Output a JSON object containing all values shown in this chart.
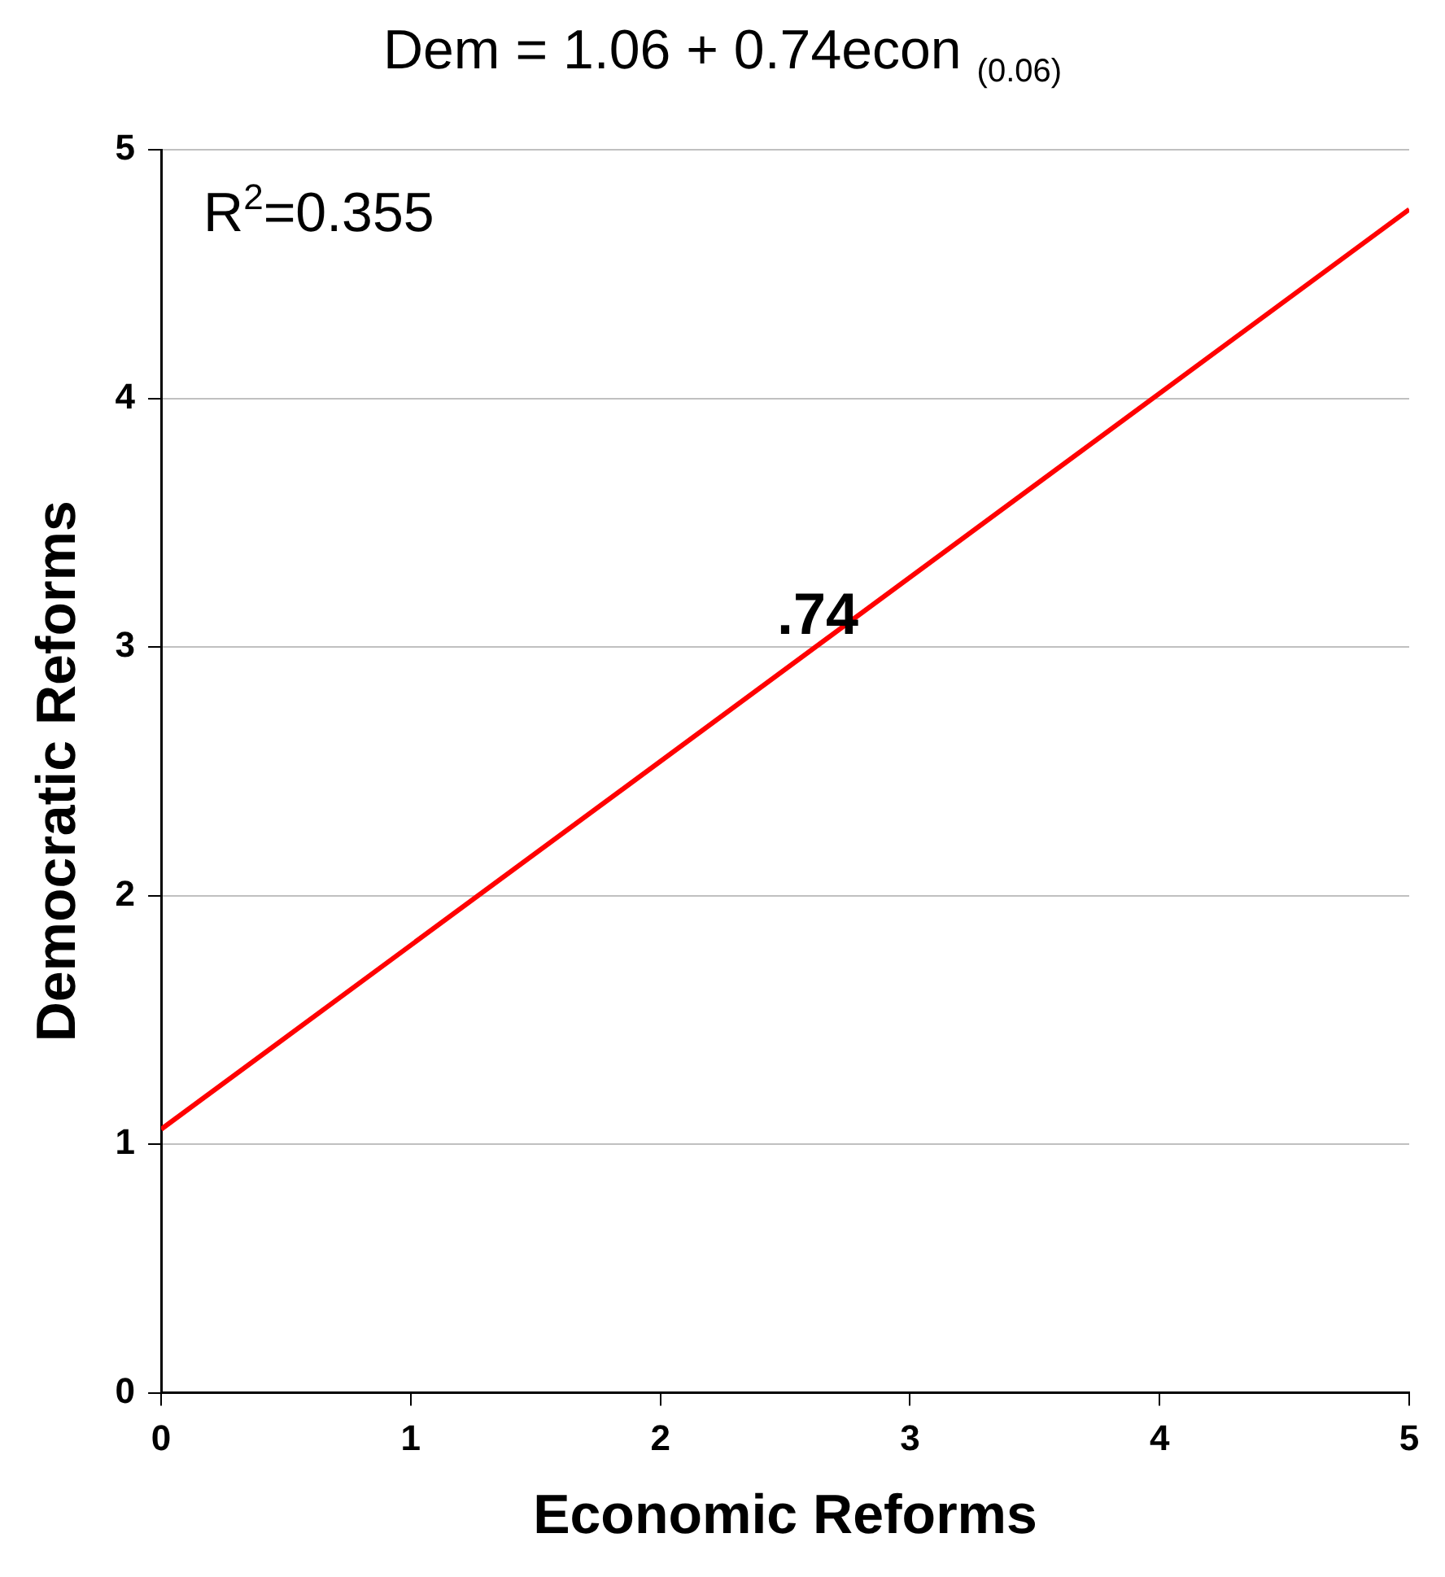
{
  "chart_data": {
    "type": "line",
    "title": "Dem = 1.06 + 0.74econ $_{(0.06)}$",
    "xlabel": "Economic Reforms",
    "ylabel": "Democratic Reforms",
    "x": [
      0,
      5
    ],
    "series": [
      {
        "color": "#ff0000",
        "values": [
          1.06,
          4.76
        ]
      }
    ],
    "xlim": [
      0,
      5
    ],
    "ylim": [
      0,
      5
    ],
    "xticks": [
      0,
      1,
      2,
      3,
      4,
      5
    ],
    "yticks": [
      0,
      1,
      2,
      3,
      4,
      5
    ],
    "grid": "y",
    "legend": false,
    "marker": "none",
    "line_style": "solid",
    "annotations": [
      "R$^{2}$=0.355",
      ".74"
    ]
  }
}
